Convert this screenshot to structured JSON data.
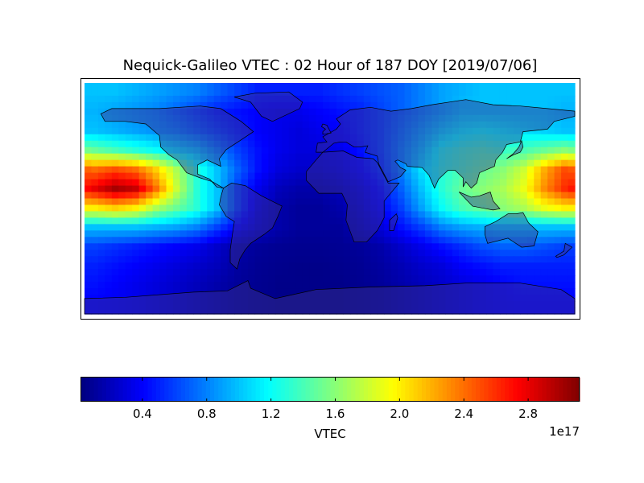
{
  "chart_data": {
    "type": "heatmap",
    "title": "Nequick-Galileo VTEC : 02 Hour of 187 DOY [2019/07/06]",
    "projection": "equirectangular world map with coastlines and country borders",
    "xlim": [
      -180,
      180
    ],
    "ylim": [
      -90,
      90
    ],
    "lon_centers": [
      -172.5,
      -157.5,
      -142.5,
      -127.5,
      -112.5,
      -97.5,
      -82.5,
      -67.5,
      -52.5,
      -37.5,
      -22.5,
      -7.5,
      7.5,
      22.5,
      37.5,
      52.5,
      67.5,
      82.5,
      97.5,
      112.5,
      127.5,
      142.5,
      157.5,
      172.5
    ],
    "lat_centers": [
      82.5,
      67.5,
      52.5,
      37.5,
      22.5,
      7.5,
      -7.5,
      -22.5,
      -37.5,
      -52.5,
      -67.5,
      -82.5
    ],
    "values_scale": "1e17",
    "values": [
      [
        1.0,
        1.0,
        0.95,
        0.9,
        0.85,
        0.8,
        0.7,
        0.6,
        0.5,
        0.5,
        0.5,
        0.5,
        0.55,
        0.6,
        0.65,
        0.7,
        0.8,
        0.9,
        0.95,
        1.0,
        1.0,
        1.0,
        1.0,
        1.0
      ],
      [
        0.95,
        0.9,
        0.85,
        0.8,
        0.7,
        0.6,
        0.5,
        0.45,
        0.4,
        0.35,
        0.35,
        0.4,
        0.45,
        0.5,
        0.6,
        0.7,
        0.8,
        0.9,
        1.0,
        1.0,
        1.0,
        1.0,
        1.0,
        0.95
      ],
      [
        1.0,
        0.95,
        0.9,
        0.85,
        0.8,
        0.7,
        0.6,
        0.5,
        0.4,
        0.35,
        0.3,
        0.35,
        0.4,
        0.5,
        0.6,
        0.75,
        0.9,
        1.05,
        1.15,
        1.2,
        1.15,
        1.1,
        1.05,
        1.0
      ],
      [
        1.5,
        1.4,
        1.3,
        1.2,
        1.1,
        1.0,
        0.8,
        0.6,
        0.45,
        0.35,
        0.3,
        0.3,
        0.35,
        0.45,
        0.6,
        0.8,
        1.0,
        1.25,
        1.35,
        1.4,
        1.35,
        1.4,
        1.5,
        1.6
      ],
      [
        2.4,
        2.5,
        2.4,
        2.1,
        1.7,
        1.3,
        1.0,
        0.7,
        0.45,
        0.3,
        0.25,
        0.25,
        0.3,
        0.4,
        0.55,
        0.8,
        1.1,
        1.3,
        1.4,
        1.5,
        1.6,
        1.8,
        2.2,
        2.5
      ],
      [
        2.8,
        3.0,
        2.9,
        2.4,
        1.8,
        1.3,
        1.0,
        0.6,
        0.35,
        0.2,
        0.15,
        0.15,
        0.2,
        0.3,
        0.45,
        0.7,
        1.0,
        1.3,
        1.5,
        1.6,
        1.7,
        1.9,
        2.3,
        2.6
      ],
      [
        2.0,
        2.1,
        2.0,
        1.7,
        1.5,
        1.3,
        1.0,
        0.6,
        0.3,
        0.15,
        0.1,
        0.1,
        0.15,
        0.25,
        0.4,
        0.6,
        0.9,
        1.2,
        1.4,
        1.5,
        1.6,
        1.7,
        1.9,
        2.0
      ],
      [
        1.0,
        1.0,
        1.0,
        0.95,
        0.9,
        0.8,
        0.6,
        0.4,
        0.25,
        0.15,
        0.1,
        0.1,
        0.1,
        0.2,
        0.3,
        0.45,
        0.6,
        0.8,
        0.9,
        0.95,
        1.0,
        1.0,
        1.0,
        1.0
      ],
      [
        0.6,
        0.55,
        0.5,
        0.45,
        0.4,
        0.35,
        0.25,
        0.15,
        0.1,
        0.08,
        0.07,
        0.07,
        0.08,
        0.1,
        0.15,
        0.25,
        0.35,
        0.45,
        0.55,
        0.65,
        0.7,
        0.7,
        0.65,
        0.6
      ],
      [
        0.5,
        0.45,
        0.4,
        0.35,
        0.3,
        0.25,
        0.2,
        0.12,
        0.08,
        0.06,
        0.05,
        0.05,
        0.06,
        0.08,
        0.12,
        0.18,
        0.25,
        0.3,
        0.4,
        0.45,
        0.5,
        0.5,
        0.5,
        0.5
      ],
      [
        0.45,
        0.4,
        0.35,
        0.3,
        0.25,
        0.2,
        0.15,
        0.1,
        0.07,
        0.05,
        0.05,
        0.05,
        0.05,
        0.07,
        0.1,
        0.15,
        0.2,
        0.25,
        0.3,
        0.35,
        0.4,
        0.45,
        0.45,
        0.45
      ],
      [
        0.4,
        0.38,
        0.35,
        0.3,
        0.25,
        0.2,
        0.15,
        0.1,
        0.07,
        0.05,
        0.05,
        0.05,
        0.05,
        0.07,
        0.1,
        0.15,
        0.2,
        0.25,
        0.3,
        0.35,
        0.38,
        0.4,
        0.4,
        0.4
      ]
    ],
    "colormap": "jet",
    "colorbar": {
      "label": "VTEC",
      "range": [
        0.02,
        3.12
      ],
      "ticks": [
        0.4,
        0.8,
        1.2,
        1.6,
        2.0,
        2.4,
        2.8
      ],
      "tick_labels": [
        "0.4",
        "0.8",
        "1.2",
        "1.6",
        "2.0",
        "2.4",
        "2.8"
      ],
      "offset_text": "1e17",
      "orientation": "horizontal",
      "placement": "bottom"
    }
  }
}
